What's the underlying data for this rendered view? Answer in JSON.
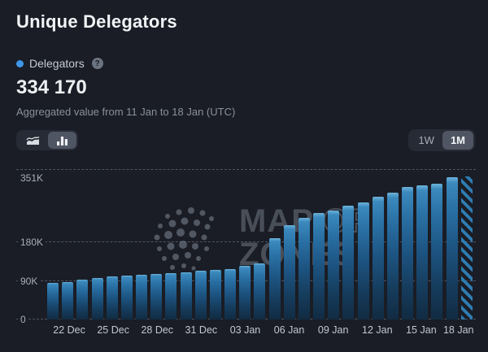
{
  "header": {
    "title": "Unique Delegators",
    "legend": {
      "label": "Delegators",
      "dot_color": "#3e96e9",
      "help_glyph": "?"
    },
    "value": "334 170",
    "subtitle": "Aggregated value from 11 Jan to 18 Jan (UTC)"
  },
  "toolbar": {
    "chart_type_options": [
      {
        "id": "area",
        "icon": "area-chart-icon",
        "selected": false
      },
      {
        "id": "bar",
        "icon": "bar-chart-icon",
        "selected": true
      }
    ],
    "range_options": [
      {
        "label": "1W",
        "selected": false
      },
      {
        "label": "1M",
        "selected": true
      }
    ]
  },
  "watermark": {
    "word1": "MAP",
    "word2": "OF",
    "word3": "ZONES",
    "logo": "cosmos-dots-logo"
  },
  "chart_data": {
    "type": "bar",
    "title": "Unique Delegators",
    "ylabel": "Delegators",
    "ylim": [
      0,
      351000
    ],
    "grid": "dashed",
    "y_ticks": [
      "0",
      "90K",
      "180K",
      "351K"
    ],
    "y_tick_values": [
      0,
      90000,
      180000,
      351000
    ],
    "x_tick_labels": [
      "22 Dec",
      "25 Dec",
      "28 Dec",
      "31 Dec",
      "03 Jan",
      "06 Jan",
      "09 Jan",
      "12 Jan",
      "15 Jan",
      "18 Jan"
    ],
    "categories": [
      "21 Dec",
      "22 Dec",
      "23 Dec",
      "24 Dec",
      "25 Dec",
      "26 Dec",
      "27 Dec",
      "28 Dec",
      "29 Dec",
      "30 Dec",
      "31 Dec",
      "01 Jan",
      "02 Jan",
      "03 Jan",
      "04 Jan",
      "05 Jan",
      "06 Jan",
      "07 Jan",
      "08 Jan",
      "09 Jan",
      "10 Jan",
      "11 Jan",
      "12 Jan",
      "13 Jan",
      "14 Jan",
      "15 Jan",
      "16 Jan",
      "17 Jan",
      "18 Jan"
    ],
    "values": [
      85000,
      88000,
      93000,
      97000,
      100000,
      102000,
      104000,
      106000,
      108000,
      111000,
      113000,
      115000,
      118000,
      125000,
      131000,
      189000,
      221000,
      237000,
      249000,
      255000,
      265000,
      274000,
      287000,
      296000,
      309000,
      313000,
      316000,
      333000,
      334170
    ],
    "last_bar_style": "hatched",
    "bar_color_top": "#3b89bd",
    "bar_color_bottom": "#112b42",
    "legend_position": "top-left"
  }
}
